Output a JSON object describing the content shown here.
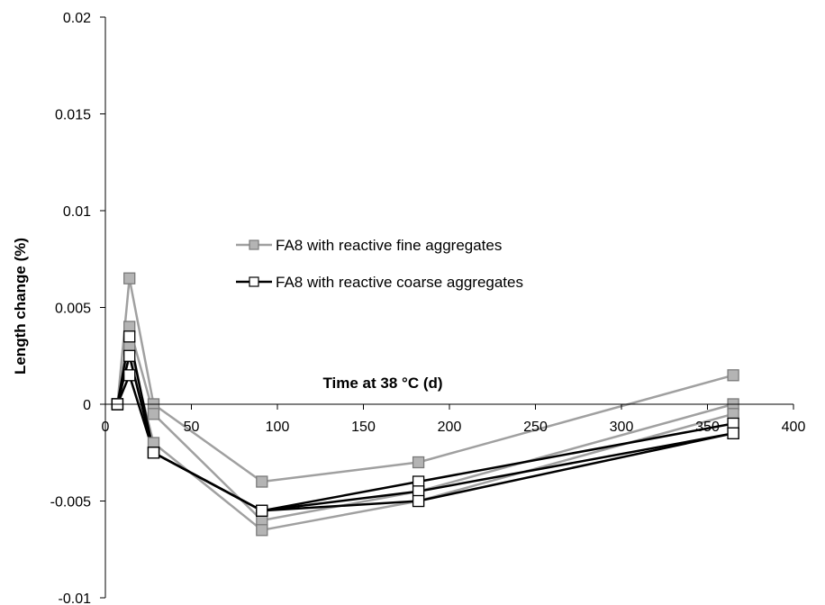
{
  "chart_data": {
    "type": "line",
    "xlabel": "Time at 38 °C (d)",
    "ylabel": "Length change (%)",
    "xlim": [
      0,
      400
    ],
    "ylim": [
      -0.01,
      0.02
    ],
    "x_ticks": [
      0,
      50,
      100,
      150,
      200,
      250,
      300,
      350,
      400
    ],
    "y_ticks": [
      -0.01,
      -0.005,
      0,
      0.005,
      0.01,
      0.015,
      0.02
    ],
    "x_tick_labels": [
      "0",
      "50",
      "100",
      "150",
      "200",
      "250",
      "300",
      "350",
      "400"
    ],
    "y_tick_labels": [
      "-0.01",
      "-0.005",
      "0",
      "0.005",
      "0.01",
      "0.015",
      "0.02"
    ],
    "grid": false,
    "legend_position": "center",
    "legend": [
      {
        "label": "FA8 with reactive fine aggregates",
        "color": "#a0a0a0",
        "marker": "filled-square"
      },
      {
        "label": "FA8 with reactive coarse aggregates",
        "color": "#000000",
        "marker": "open-square"
      }
    ],
    "series": [
      {
        "group": "fine",
        "color": "#a0a0a0",
        "marker_fill": "#b4b4b4",
        "marker_stroke": "#7a7a7a",
        "x": [
          7,
          14,
          28,
          91,
          182,
          365
        ],
        "y": [
          0,
          0.0065,
          0,
          -0.004,
          -0.003,
          0.0015
        ]
      },
      {
        "group": "fine",
        "color": "#a0a0a0",
        "marker_fill": "#b4b4b4",
        "marker_stroke": "#7a7a7a",
        "x": [
          7,
          14,
          28,
          91,
          182,
          365
        ],
        "y": [
          0,
          0.004,
          -0.0005,
          -0.006,
          -0.0045,
          0
        ]
      },
      {
        "group": "fine",
        "color": "#a0a0a0",
        "marker_fill": "#b4b4b4",
        "marker_stroke": "#7a7a7a",
        "x": [
          7,
          14,
          28,
          91,
          182,
          365
        ],
        "y": [
          0,
          0.003,
          -0.002,
          -0.0065,
          -0.005,
          -0.0005
        ]
      },
      {
        "group": "coarse",
        "color": "#000000",
        "marker_fill": "#ffffff",
        "marker_stroke": "#000000",
        "x": [
          7,
          14,
          28,
          91,
          182,
          365
        ],
        "y": [
          0,
          0.0035,
          -0.0025,
          -0.0055,
          -0.004,
          -0.001
        ]
      },
      {
        "group": "coarse",
        "color": "#000000",
        "marker_fill": "#ffffff",
        "marker_stroke": "#000000",
        "x": [
          7,
          14,
          28,
          91,
          182,
          365
        ],
        "y": [
          0,
          0.0025,
          -0.0025,
          -0.0055,
          -0.0045,
          -0.0015
        ]
      },
      {
        "group": "coarse",
        "color": "#000000",
        "marker_fill": "#ffffff",
        "marker_stroke": "#000000",
        "x": [
          7,
          14,
          28,
          91,
          182,
          365
        ],
        "y": [
          0,
          0.0015,
          -0.0025,
          -0.0055,
          -0.005,
          -0.0015
        ]
      }
    ]
  }
}
